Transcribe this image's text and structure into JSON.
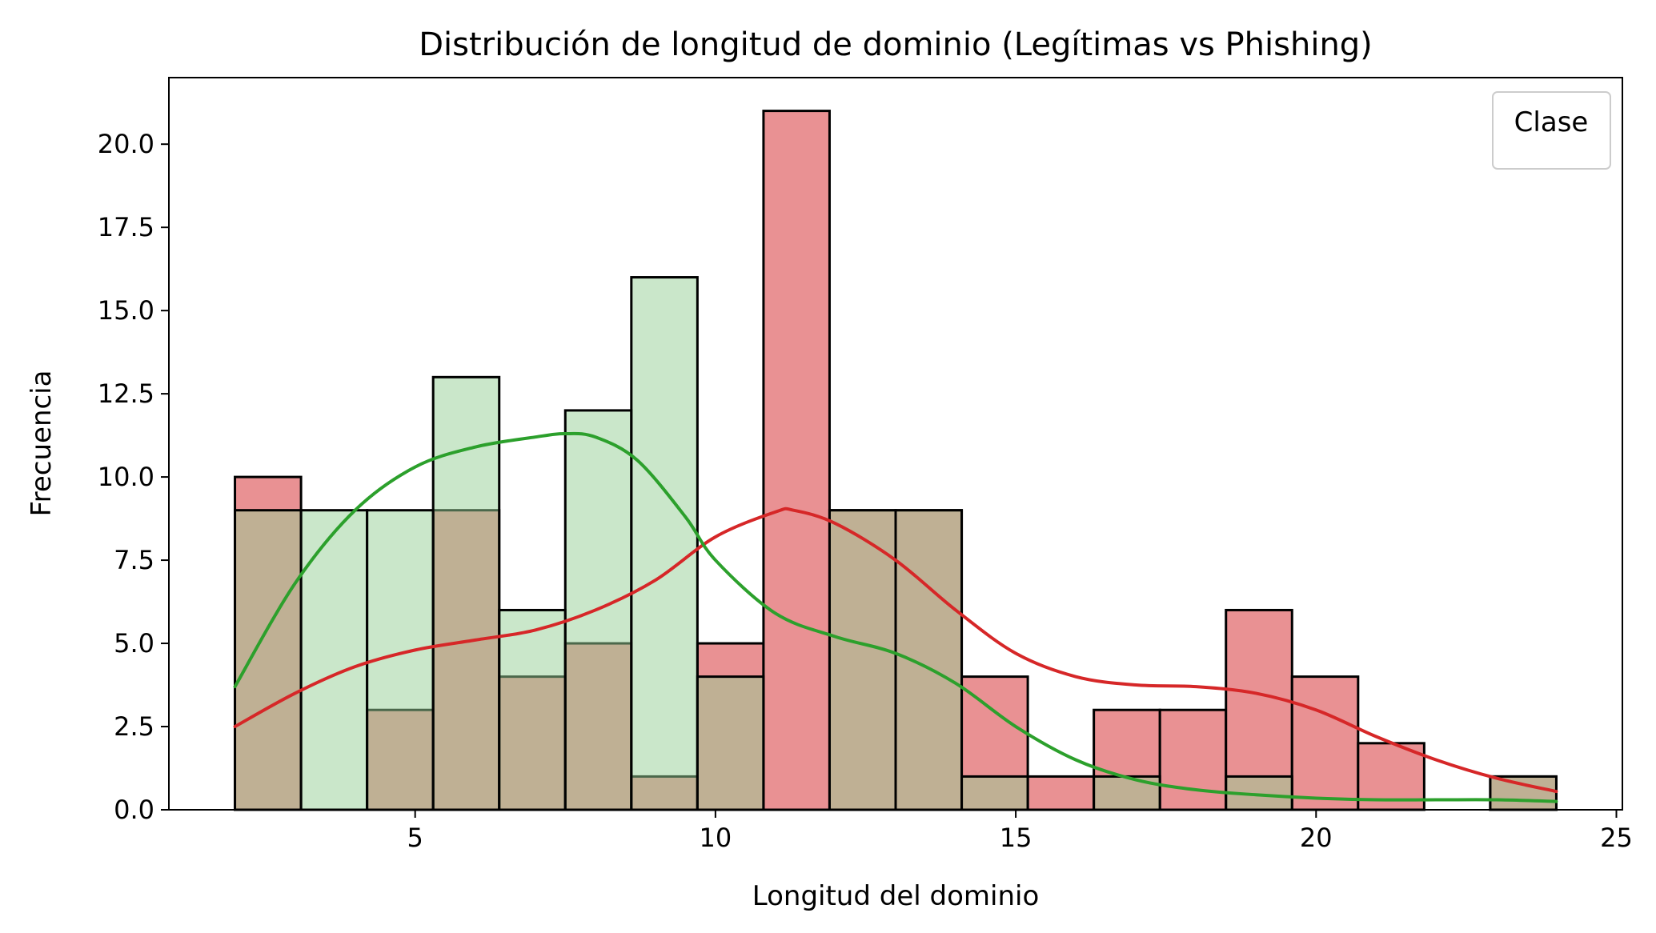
{
  "chart_data": {
    "type": "bar",
    "subtype": "overlapping histogram with kde",
    "title": "Distribución de longitud de dominio (Legítimas vs Phishing)",
    "xlabel": "Longitud del dominio",
    "ylabel": "Frecuencia",
    "xlim": [
      0.9,
      25.1
    ],
    "ylim": [
      0,
      22
    ],
    "xticks": [
      5,
      10,
      15,
      20,
      25
    ],
    "xtick_labels": [
      "5",
      "10",
      "15",
      "20",
      "25"
    ],
    "yticks": [
      0,
      2.5,
      5,
      7.5,
      10,
      12.5,
      15,
      17.5,
      20
    ],
    "ytick_labels": [
      "0.0",
      "2.5",
      "5.0",
      "7.5",
      "10.0",
      "12.5",
      "15.0",
      "17.5",
      "20.0"
    ],
    "grid": false,
    "legend": {
      "title": "Clase",
      "placement": "top-right",
      "entries": []
    },
    "bin_edges": [
      2.0,
      3.1,
      4.2,
      5.3,
      6.4,
      7.5,
      8.6,
      9.7,
      10.8,
      11.9,
      13.0,
      14.1,
      15.2,
      16.3,
      17.4,
      18.5,
      19.6,
      20.7,
      21.8,
      22.9,
      24.0
    ],
    "series": [
      {
        "color": "#d62728",
        "fill": "#e99193",
        "values": [
          10,
          0,
          3,
          9,
          4,
          5,
          1,
          5,
          21,
          9,
          9,
          4,
          1,
          3,
          3,
          6,
          4,
          2,
          0,
          1
        ],
        "kde": {
          "x": [
            2.0,
            3.0,
            4.0,
            5.0,
            6.0,
            7.0,
            8.0,
            9.0,
            10.0,
            11.0,
            11.3,
            12.0,
            13.0,
            14.0,
            15.0,
            16.0,
            17.0,
            18.0,
            19.0,
            20.0,
            21.0,
            22.0,
            23.0,
            24.0
          ],
          "y": [
            2.5,
            3.5,
            4.3,
            4.8,
            5.1,
            5.4,
            6.0,
            6.9,
            8.2,
            8.95,
            9.0,
            8.6,
            7.5,
            6.0,
            4.7,
            4.0,
            3.75,
            3.7,
            3.5,
            3.0,
            2.2,
            1.5,
            0.95,
            0.55
          ]
        }
      },
      {
        "color": "#2ca02c",
        "fill": "#95cf95",
        "values": [
          9,
          9,
          9,
          13,
          6,
          12,
          16,
          4,
          0,
          9,
          9,
          1,
          0,
          1,
          0,
          1,
          0,
          0,
          0,
          1
        ],
        "kde": {
          "x": [
            2.0,
            3.0,
            4.0,
            5.0,
            6.0,
            7.0,
            7.5,
            8.0,
            8.7,
            9.5,
            10.0,
            11.0,
            12.0,
            13.0,
            14.0,
            15.0,
            16.0,
            17.0,
            18.0,
            19.0,
            20.0,
            21.0,
            22.0,
            23.0,
            24.0
          ],
          "y": [
            3.7,
            6.8,
            9.0,
            10.3,
            10.9,
            11.2,
            11.3,
            11.2,
            10.5,
            8.8,
            7.5,
            5.9,
            5.2,
            4.7,
            3.8,
            2.5,
            1.5,
            0.9,
            0.6,
            0.45,
            0.35,
            0.3,
            0.3,
            0.3,
            0.25
          ]
        }
      }
    ]
  }
}
